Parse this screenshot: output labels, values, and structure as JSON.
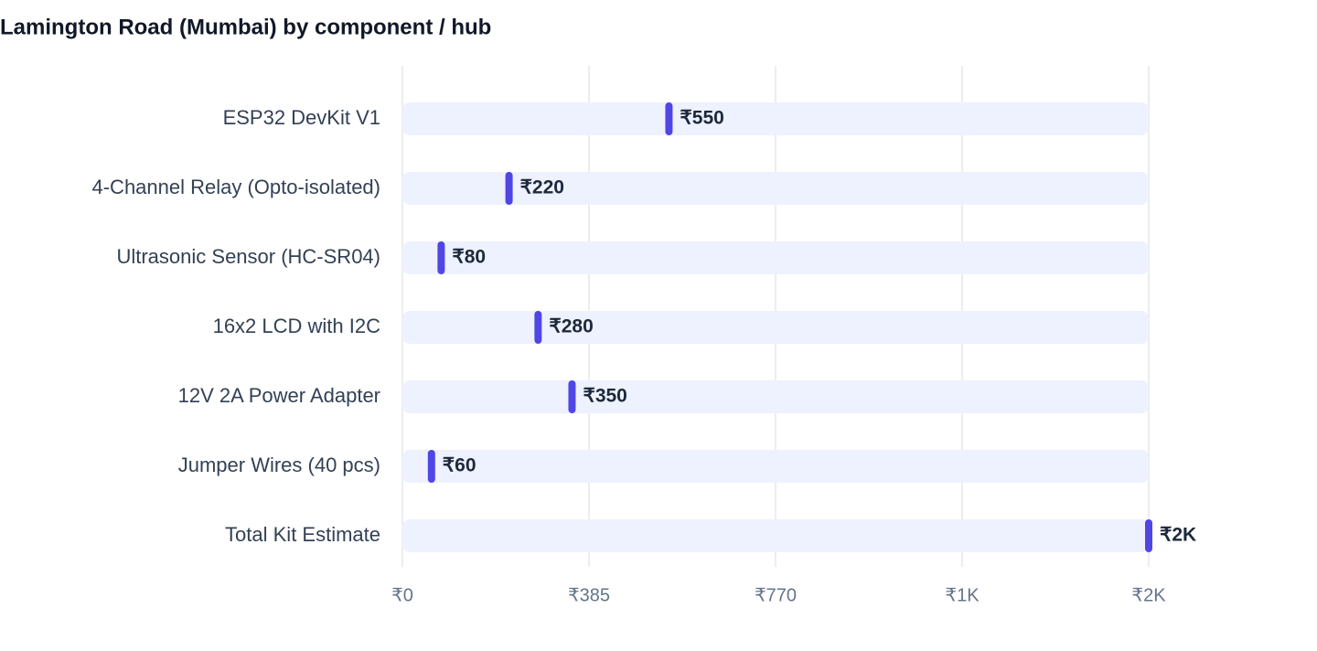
{
  "chart_data": {
    "type": "bar",
    "title": "Lamington Road (Mumbai) by component / hub",
    "categories": [
      "ESP32 DevKit V1",
      "4-Channel Relay (Opto-isolated)",
      "Ultrasonic Sensor (HC-SR04)",
      "16x2 LCD with I2C",
      "12V 2A Power Adapter",
      "Jumper Wires (40 pcs)",
      "Total Kit Estimate"
    ],
    "values": [
      550,
      220,
      80,
      280,
      350,
      60,
      1540
    ],
    "value_labels": [
      "₹550",
      "₹220",
      "₹80",
      "₹280",
      "₹350",
      "₹60",
      "₹2K"
    ],
    "color": "#4f46e5",
    "track_color": "#eef2ff",
    "xlim": [
      0,
      1540
    ],
    "xticks": [
      {
        "value": 0,
        "label": "₹0"
      },
      {
        "value": 385,
        "label": "₹385"
      },
      {
        "value": 770,
        "label": "₹770"
      },
      {
        "value": 1155,
        "label": "₹1K"
      },
      {
        "value": 1540,
        "label": "₹2K"
      }
    ],
    "grid": true
  }
}
